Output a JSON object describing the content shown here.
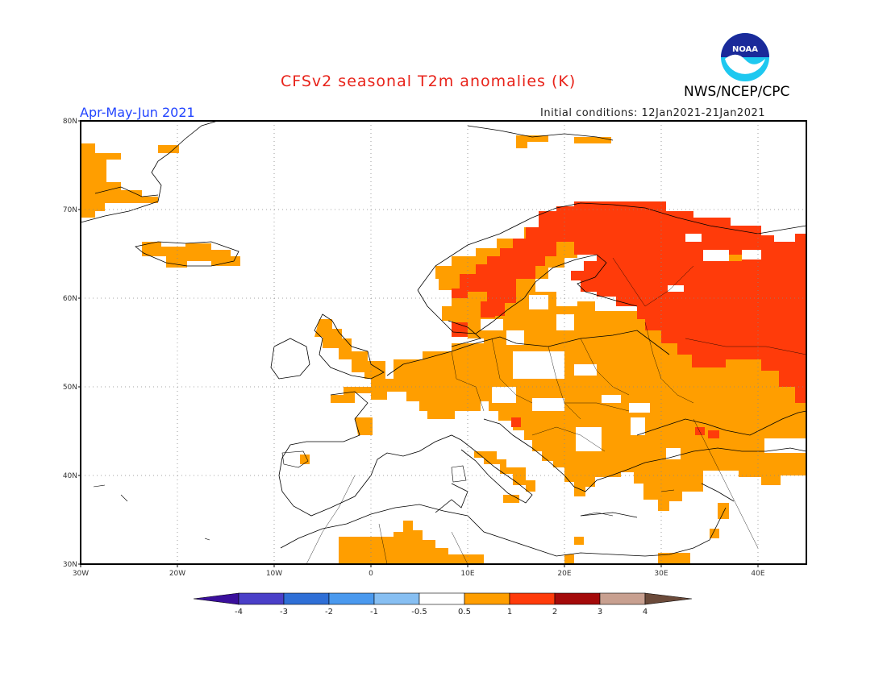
{
  "title": "CFSv2 seasonal T2m anomalies (K)",
  "agency": "NWS/NCEP/CPC",
  "season": "Apr-May-Jun 2021",
  "initial_conditions": "Initial conditions: 12Jan2021-21Jan2021",
  "logo_text": "NOAA",
  "map": {
    "lon_range": [
      -30,
      45
    ],
    "lat_range": [
      30,
      80
    ],
    "lat_labels": [
      "80N",
      "70N",
      "60N",
      "50N",
      "40N",
      "30N"
    ],
    "lon_labels": [
      "30W",
      "20W",
      "10W",
      "0",
      "10E",
      "20E",
      "30E",
      "40E"
    ],
    "lat_values": [
      80,
      70,
      60,
      50,
      40,
      30
    ],
    "lon_values": [
      -30,
      -20,
      -10,
      0,
      10,
      20,
      30,
      40
    ],
    "grid": true
  },
  "colorbar": {
    "ticks": [
      "-4",
      "-3",
      "-2",
      "-1",
      "-0.5",
      "0.5",
      "1",
      "2",
      "3",
      "4"
    ],
    "colors": [
      "#3a0f9c",
      "#4a3fc8",
      "#2f6fd6",
      "#4a99ee",
      "#87bff2",
      "#ffffff",
      "#ff9e00",
      "#ff3b0a",
      "#a40a0a",
      "#c8a090",
      "#6b4a3a"
    ]
  },
  "anomaly_colors": {
    "0.5-1": "#ff9e00",
    "1-2": "#ff3b0a"
  }
}
